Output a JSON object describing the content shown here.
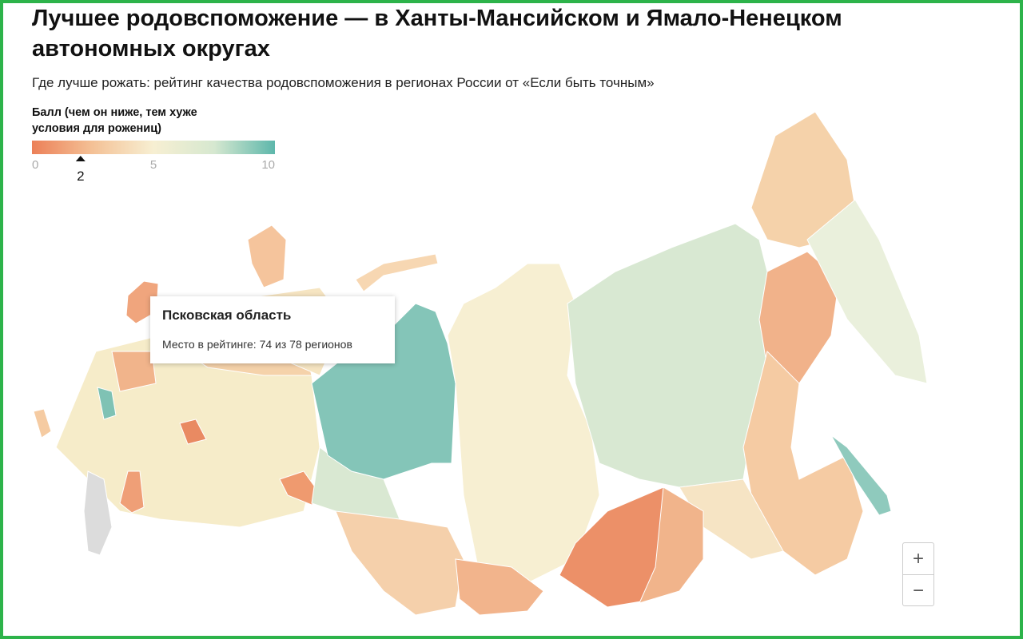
{
  "header": {
    "title": "Лучшее родовспоможение — в Ханты-Мансийском и Ямало-Ненецком автономных округах",
    "subtitle": "Где лучше рожать: рейтинг качества родовспоможения в регионах России от «Если быть точным»"
  },
  "legend": {
    "title": "Балл (чем он ниже, тем хуже условия для рожениц)",
    "scale": [
      0,
      10
    ],
    "ticks": [
      0,
      5,
      10
    ],
    "marker": 2
  },
  "tooltip": {
    "title": "Псковская область",
    "text": "Место в рейтинге: 74 из 78 регионов"
  },
  "zoom": {
    "zoom_in": "+",
    "zoom_out": "−"
  }
}
